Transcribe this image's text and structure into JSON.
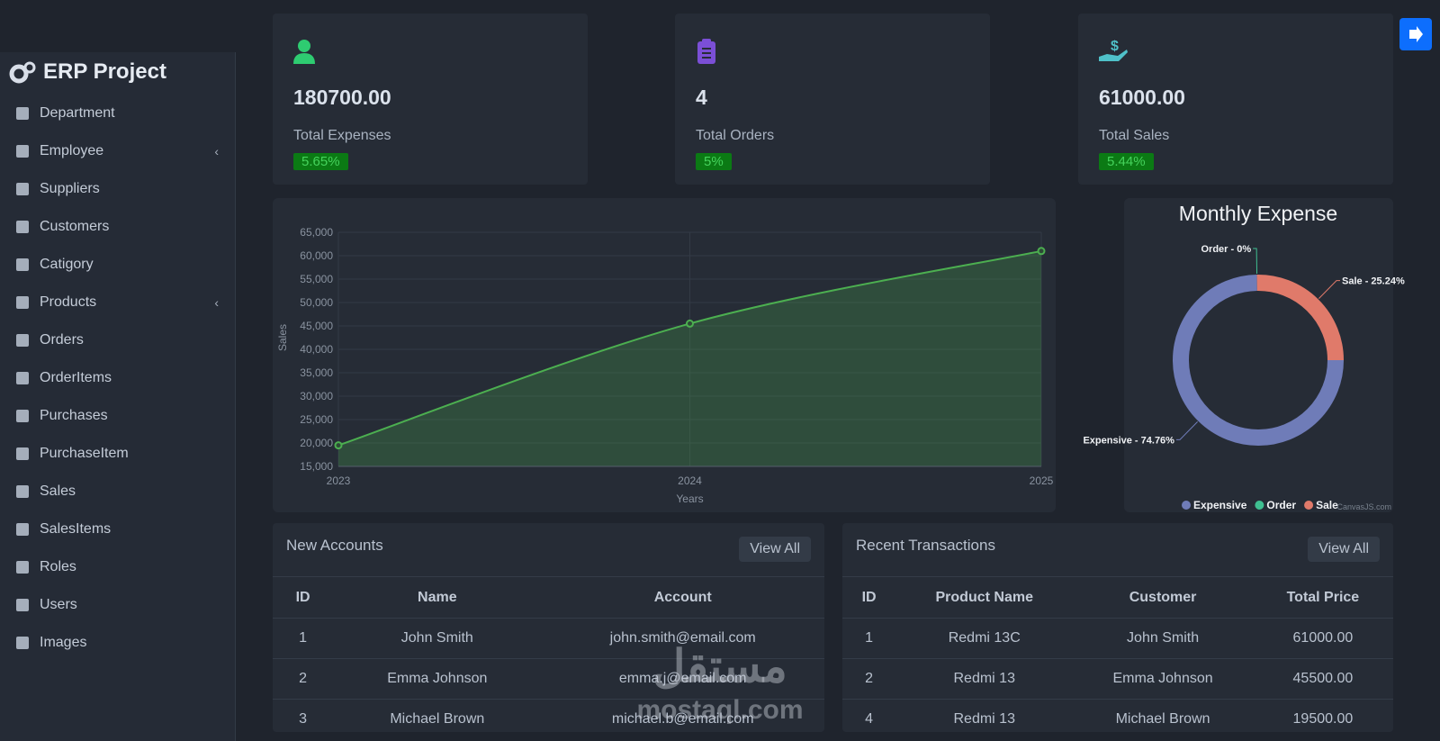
{
  "sidebar": {
    "title": "ERP Project",
    "items": [
      {
        "label": "Department",
        "submenu": false
      },
      {
        "label": "Employee",
        "submenu": true
      },
      {
        "label": "Suppliers",
        "submenu": false
      },
      {
        "label": "Customers",
        "submenu": false
      },
      {
        "label": "Catigory",
        "submenu": false
      },
      {
        "label": "Products",
        "submenu": true
      },
      {
        "label": "Orders",
        "submenu": false
      },
      {
        "label": "OrderItems",
        "submenu": false
      },
      {
        "label": "Purchases",
        "submenu": false
      },
      {
        "label": "PurchaseItem",
        "submenu": false
      },
      {
        "label": "Sales",
        "submenu": false
      },
      {
        "label": "SalesItems",
        "submenu": false
      },
      {
        "label": "Roles",
        "submenu": false
      },
      {
        "label": "Users",
        "submenu": false
      },
      {
        "label": "Images",
        "submenu": false
      }
    ]
  },
  "cards": [
    {
      "value": "180700.00",
      "label": "Total Expenses",
      "change": "5.65%"
    },
    {
      "value": "4",
      "label": "Total Orders",
      "change": "5%"
    },
    {
      "value": "61000.00",
      "label": "Total Sales",
      "change": "5.44%"
    }
  ],
  "chart_data": [
    {
      "type": "line",
      "categories": [
        "2023",
        "2024",
        "2025"
      ],
      "values": [
        19500,
        45500,
        61000
      ],
      "color": "#4caf50",
      "area": true,
      "x_label": "Years",
      "y_label": "Sales",
      "ylim": [
        15000,
        65000
      ],
      "yticks": [
        {
          "value": 15000,
          "label": "15,000"
        },
        {
          "value": 20000,
          "label": "20,000"
        },
        {
          "value": 25000,
          "label": "25,000"
        },
        {
          "value": 30000,
          "label": "30,000"
        },
        {
          "value": 35000,
          "label": "35,000"
        },
        {
          "value": 40000,
          "label": "40,000"
        },
        {
          "value": 45000,
          "label": "45,000"
        },
        {
          "value": 50000,
          "label": "50,000"
        },
        {
          "value": 55000,
          "label": "55,000"
        },
        {
          "value": 60000,
          "label": "60,000"
        },
        {
          "value": 65000,
          "label": "65,000"
        }
      ],
      "grid": true
    },
    {
      "type": "pie",
      "title": "Monthly Expense",
      "categories": [
        "Expensive",
        "Order",
        "Sale"
      ],
      "values": [
        74.76,
        0,
        25.24
      ],
      "value_labels": [
        "Expensive - 74.76%",
        "Order - 0%",
        "Sale - 25.24%"
      ],
      "colors": [
        "#6f7cb8",
        "#3fbf91",
        "#e07a6a"
      ],
      "credit": "CanvasJS.com"
    }
  ],
  "new_accounts": {
    "title": "New Accounts",
    "button": "View All",
    "columns": [
      "ID",
      "Name",
      "Account"
    ],
    "rows": [
      [
        "1",
        "John Smith",
        "john.smith@email.com"
      ],
      [
        "2",
        "Emma Johnson",
        "emma.j@email.com"
      ],
      [
        "3",
        "Michael Brown",
        "michael.b@email.com"
      ]
    ]
  },
  "recent_transactions": {
    "title": "Recent Transactions",
    "button": "View All",
    "columns": [
      "ID",
      "Product Name",
      "Customer",
      "Total Price"
    ],
    "rows": [
      [
        "1",
        "Redmi 13C",
        "John Smith",
        "61000.00"
      ],
      [
        "2",
        "Redmi 13",
        "Emma Johnson",
        "45500.00"
      ],
      [
        "4",
        "Redmi 13",
        "Michael Brown",
        "19500.00"
      ]
    ]
  },
  "watermark": {
    "arabic": "مستقل",
    "url": "mostaql.com"
  }
}
